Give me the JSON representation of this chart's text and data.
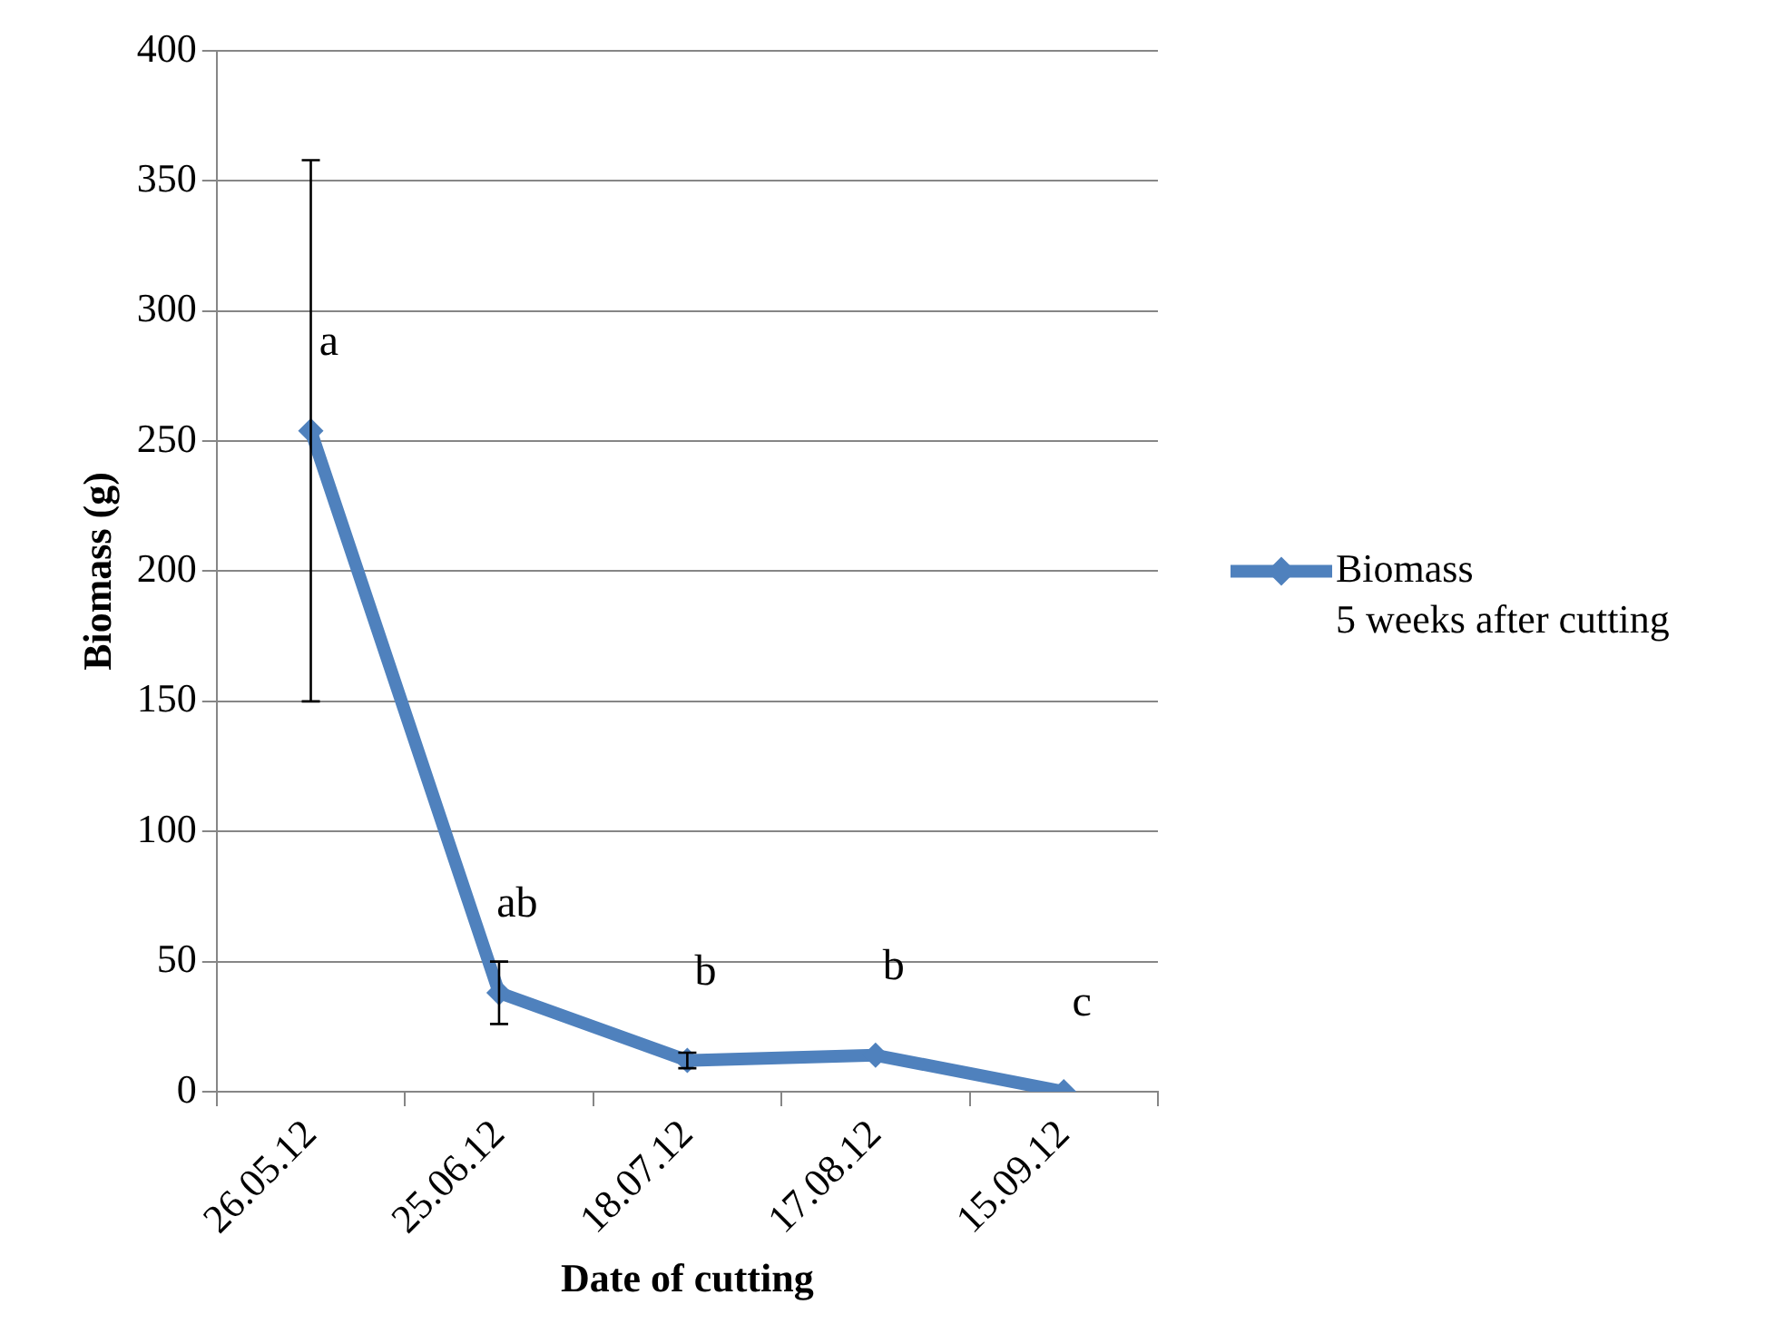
{
  "chart_data": {
    "type": "line",
    "xlabel": "Date of cutting",
    "ylabel": "Biomass (g)",
    "categories": [
      "26.05.12",
      "25.06.12",
      "18.07.12",
      "17.08.12",
      "15.09.12"
    ],
    "series": [
      {
        "name": "Biomass\n5 weeks after cutting",
        "color": "#4f81bd",
        "values": [
          254,
          38,
          12,
          14,
          0
        ],
        "errors": [
          104,
          12,
          3,
          null,
          null
        ]
      }
    ],
    "ylim": [
      0,
      400
    ],
    "yticks": [
      0,
      50,
      100,
      150,
      200,
      250,
      300,
      350,
      400
    ],
    "grid": "y",
    "legend": "right",
    "marker": "diamond",
    "line_style": "solid",
    "annotations": [
      {
        "text": "a",
        "x": "26.05.12",
        "y": 254
      },
      {
        "text": "ab",
        "x": "25.06.12",
        "y": 38
      },
      {
        "text": "b",
        "x": "18.07.12",
        "y": 12
      },
      {
        "text": "b",
        "x": "17.08.12",
        "y": 14
      },
      {
        "text": "c",
        "x": "15.09.12",
        "y": 0
      }
    ]
  }
}
